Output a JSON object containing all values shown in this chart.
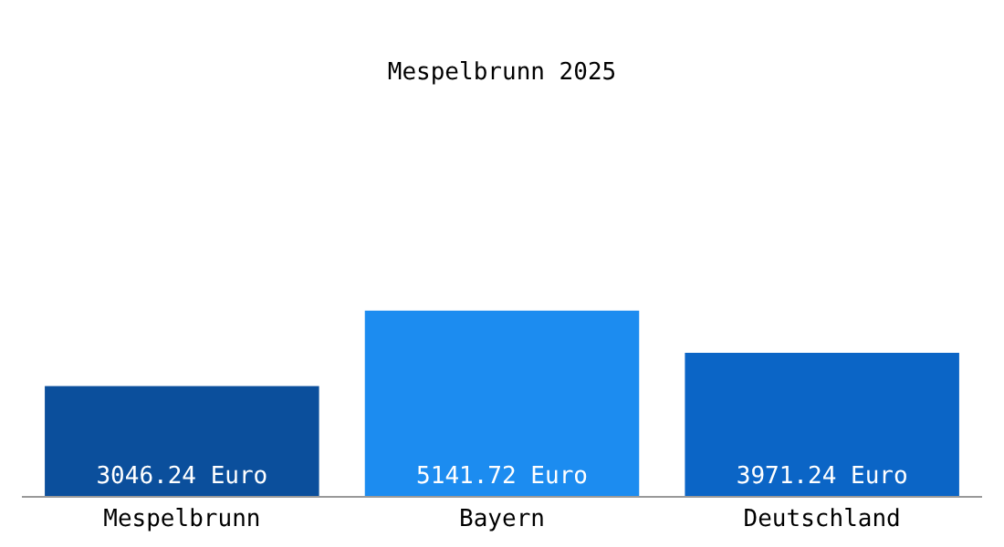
{
  "chart_data": {
    "type": "bar",
    "title": "Mespelbrunn 2025",
    "categories": [
      "Mespelbrunn",
      "Bayern",
      "Deutschland"
    ],
    "values": [
      3046.24,
      5141.72,
      3971.24
    ],
    "colors": [
      "#0b4f9c",
      "#1c8cf0",
      "#0b65c6"
    ],
    "value_labels": [
      "3046.24 Euro",
      "5141.72 Euro",
      "3971.24 Euro"
    ],
    "grid": false,
    "legend": false
  }
}
